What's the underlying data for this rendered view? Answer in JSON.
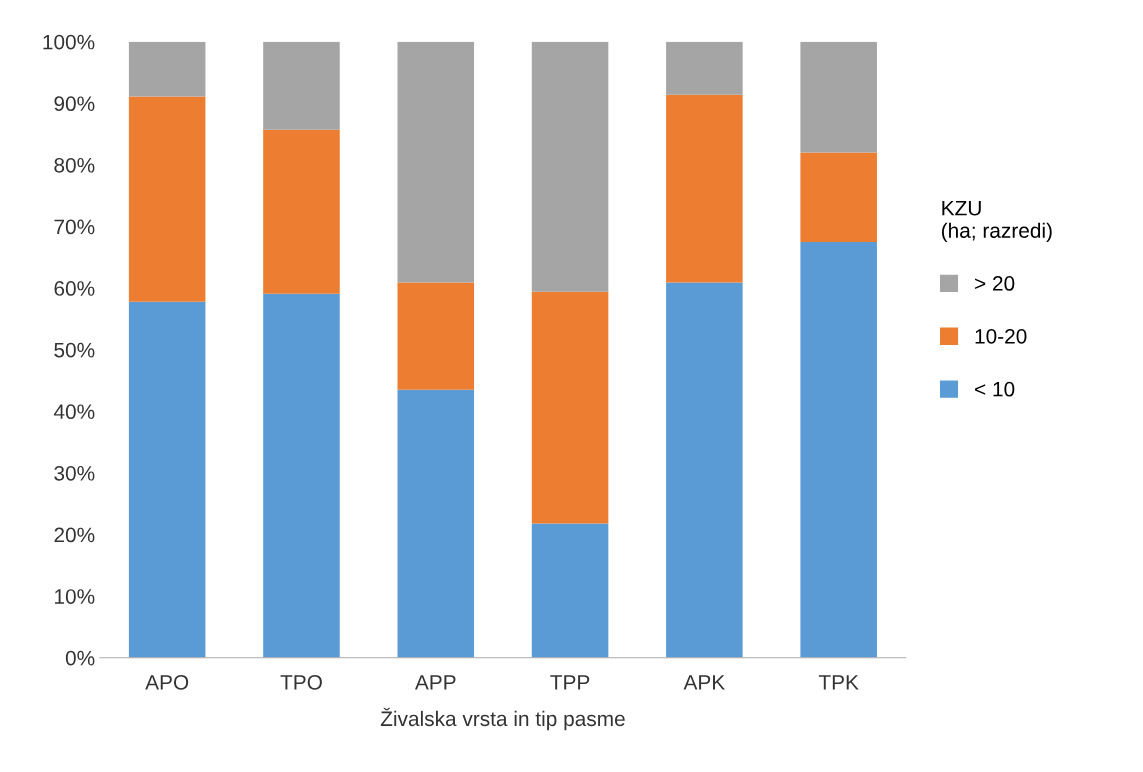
{
  "chart_data": {
    "type": "bar",
    "stacked": true,
    "xlabel": "Živalska vrsta in tip pasme",
    "legend_title": "KZU\n(ha; razredi)",
    "legend": "right",
    "categories": [
      "APO",
      "TPO",
      "APP",
      "TPP",
      "APK",
      "TPK"
    ],
    "series": [
      {
        "name": "< 10",
        "color": "#5b9bd5",
        "values": [
          57.8,
          59.1,
          43.5,
          21.8,
          60.9,
          67.5
        ]
      },
      {
        "name": "10-20",
        "color": "#ed7d31",
        "values": [
          33.3,
          26.6,
          17.4,
          37.6,
          30.5,
          14.5
        ]
      },
      {
        "name": "> 20",
        "color": "#a5a5a5",
        "values": [
          8.9,
          14.3,
          39.1,
          40.6,
          8.6,
          18.0
        ]
      }
    ],
    "ylim": [
      0,
      100
    ],
    "yticks": [
      {
        "value": 0,
        "label": "0%"
      },
      {
        "value": 10,
        "label": "10%"
      },
      {
        "value": 20,
        "label": "20%"
      },
      {
        "value": 30,
        "label": "30%"
      },
      {
        "value": 40,
        "label": "40%"
      },
      {
        "value": 50,
        "label": "50%"
      },
      {
        "value": 60,
        "label": "60%"
      },
      {
        "value": 70,
        "label": "70%"
      },
      {
        "value": 80,
        "label": "80%"
      },
      {
        "value": 90,
        "label": "90%"
      },
      {
        "value": 100,
        "label": "100%"
      }
    ],
    "grid": false
  }
}
